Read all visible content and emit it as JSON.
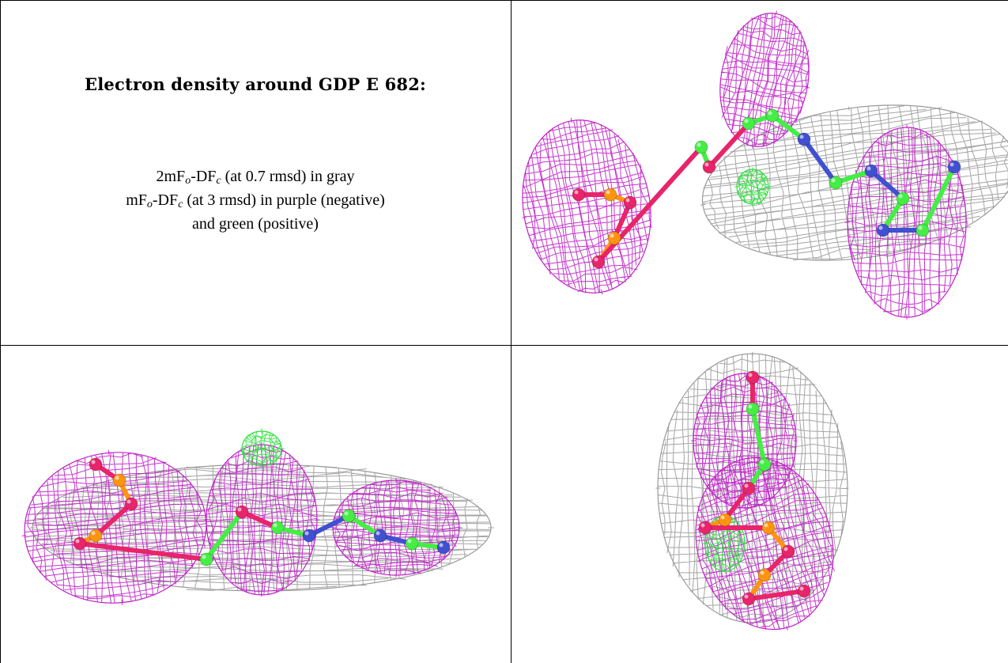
{
  "caption": {
    "title": "Electron density around GDP E 682:",
    "line1": {
      "pre": "2mF",
      "sub1": "o",
      "mid": "-DF",
      "sub2": "c",
      "post": " (at 0.7 rmsd) in gray"
    },
    "line2": {
      "pre": "mF",
      "sub1": "o",
      "mid": "-DF",
      "sub2": "c",
      "post": " (at 3 rmsd) in purple (negative)"
    },
    "line3": "and green (positive)"
  },
  "colors": {
    "gray_mesh": "#9a9a9a",
    "purple_mesh": "#c020c8",
    "green_mesh": "#30e040",
    "carbon": "#44ee44",
    "oxygen": "#e8246a",
    "phosphorus": "#ff9410",
    "nitrogen": "#4050d0"
  }
}
